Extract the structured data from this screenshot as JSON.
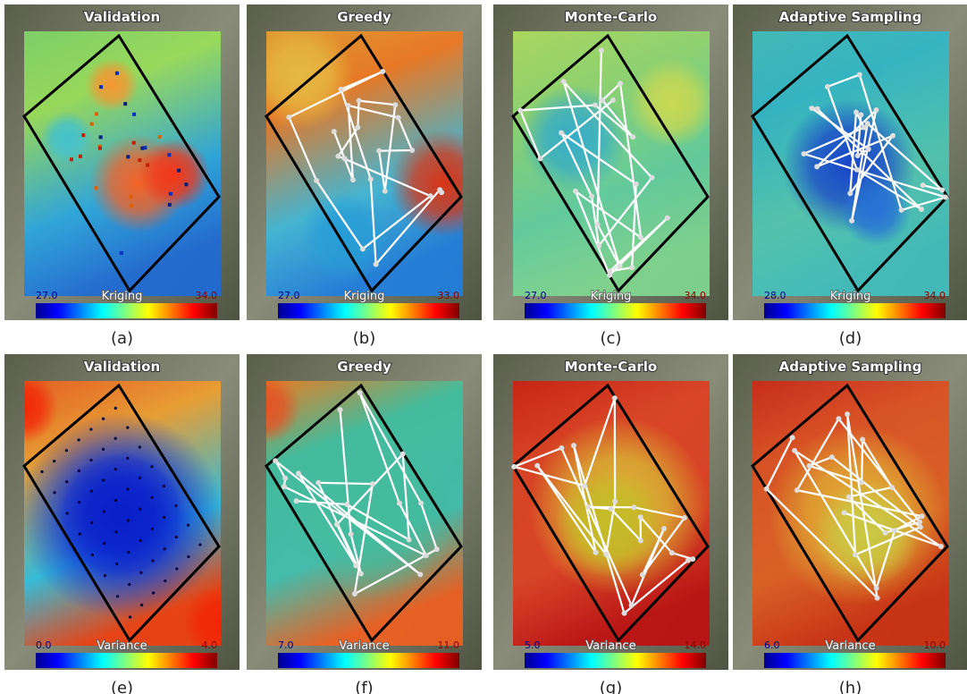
{
  "panels": [
    {
      "title": "Validation",
      "colorbar": {
        "min": "27.0",
        "label": "Kriging",
        "max": "34.0"
      },
      "caption": "(a)"
    },
    {
      "title": "Greedy",
      "colorbar": {
        "min": "27.0",
        "label": "Kriging",
        "max": "33.0"
      },
      "caption": "(b)"
    },
    {
      "title": "Monte-Carlo",
      "colorbar": {
        "min": "27.0",
        "label": "Kriging",
        "max": "34.0"
      },
      "caption": "(c)"
    },
    {
      "title": "Adaptive Sampling",
      "colorbar": {
        "min": "28.0",
        "label": "Kriging",
        "max": "34.0"
      },
      "caption": "(d)"
    },
    {
      "title": "Validation",
      "colorbar": {
        "min": "0.0",
        "label": "Variance",
        "max": "4.0"
      },
      "caption": "(e)"
    },
    {
      "title": "Greedy",
      "colorbar": {
        "min": "7.0",
        "label": "Variance",
        "max": "11.0"
      },
      "caption": "(f)"
    },
    {
      "title": "Monte-Carlo",
      "colorbar": {
        "min": "5.0",
        "label": "Variance",
        "max": "14.0"
      },
      "caption": "(g)"
    },
    {
      "title": "Adaptive Sampling",
      "colorbar": {
        "min": "6.0",
        "label": "Variance",
        "max": "10.0"
      },
      "caption": "(h)"
    }
  ]
}
